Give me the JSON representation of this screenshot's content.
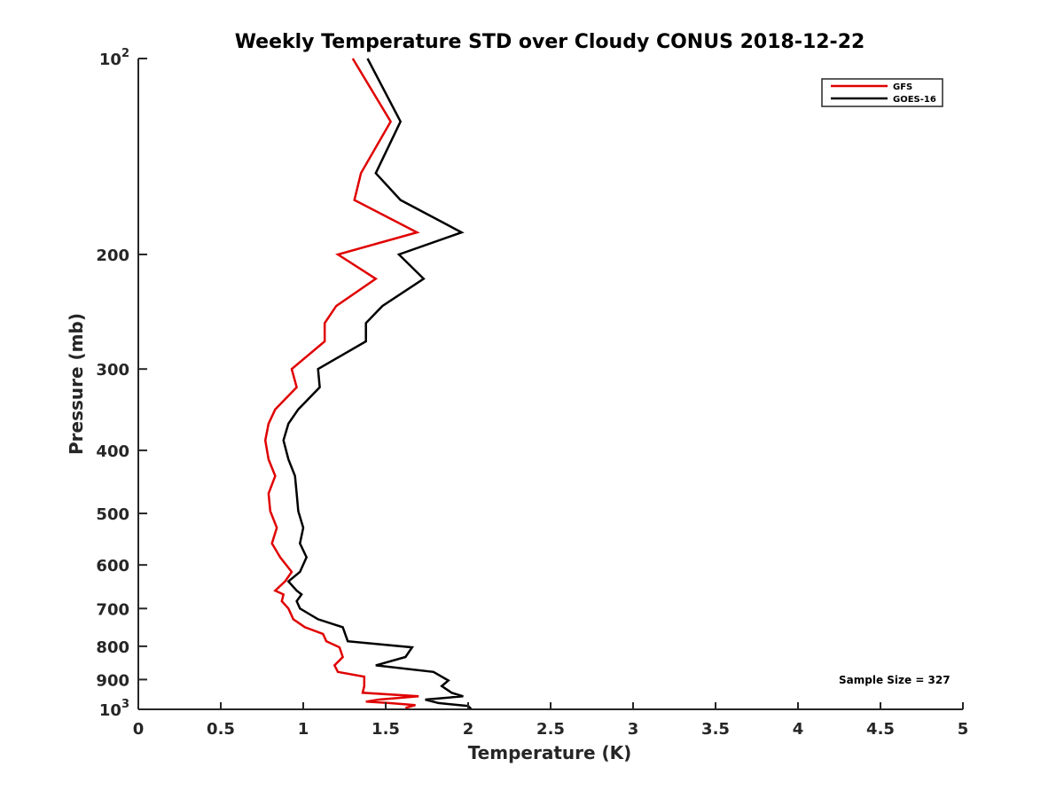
{
  "chart_data": {
    "type": "line",
    "title": "Weekly Temperature STD over Cloudy CONUS 2018-12-22",
    "xlabel": "Temperature (K)",
    "ylabel": "Pressure (mb)",
    "xlim": [
      0,
      5
    ],
    "ylim": [
      100,
      1000
    ],
    "y_scale": "log",
    "y_reversed": true,
    "grid": false,
    "x_ticks": [
      0,
      0.5,
      1,
      1.5,
      2,
      2.5,
      3,
      3.5,
      4,
      4.5,
      5
    ],
    "x_tick_labels": [
      "0",
      "0.5",
      "1",
      "1.5",
      "2",
      "2.5",
      "3",
      "3.5",
      "4",
      "4.5",
      "5"
    ],
    "y_ticks": [
      100,
      200,
      300,
      400,
      500,
      600,
      700,
      800,
      900,
      1000
    ],
    "y_tick_labels": [
      {
        "base": "10",
        "sup": "2"
      },
      {
        "base": "200",
        "sup": ""
      },
      {
        "base": "300",
        "sup": ""
      },
      {
        "base": "400",
        "sup": ""
      },
      {
        "base": "500",
        "sup": ""
      },
      {
        "base": "600",
        "sup": ""
      },
      {
        "base": "700",
        "sup": ""
      },
      {
        "base": "800",
        "sup": ""
      },
      {
        "base": "900",
        "sup": ""
      },
      {
        "base": "10",
        "sup": "3"
      }
    ],
    "legend_position": "top-right",
    "annotation": "Sample Size = 327",
    "series": [
      {
        "name": "GFS",
        "color": "#e00000",
        "points": [
          [
            1.3,
            100
          ],
          [
            1.53,
            125
          ],
          [
            1.35,
            150
          ],
          [
            1.31,
            165
          ],
          [
            1.69,
            185
          ],
          [
            1.21,
            200
          ],
          [
            1.44,
            218
          ],
          [
            1.2,
            240
          ],
          [
            1.13,
            255
          ],
          [
            1.13,
            272
          ],
          [
            0.93,
            300
          ],
          [
            0.96,
            320
          ],
          [
            0.83,
            346
          ],
          [
            0.79,
            364
          ],
          [
            0.77,
            386
          ],
          [
            0.79,
            413
          ],
          [
            0.83,
            438
          ],
          [
            0.79,
            466
          ],
          [
            0.8,
            496
          ],
          [
            0.84,
            526
          ],
          [
            0.81,
            556
          ],
          [
            0.86,
            584
          ],
          [
            0.93,
            615
          ],
          [
            0.89,
            636
          ],
          [
            0.83,
            657
          ],
          [
            0.88,
            666
          ],
          [
            0.87,
            682
          ],
          [
            0.91,
            700
          ],
          [
            0.94,
            727
          ],
          [
            1.01,
            748
          ],
          [
            1.12,
            766
          ],
          [
            1.14,
            786
          ],
          [
            1.22,
            803
          ],
          [
            1.24,
            831
          ],
          [
            1.19,
            856
          ],
          [
            1.21,
            876
          ],
          [
            1.37,
            891
          ],
          [
            1.37,
            921
          ],
          [
            1.36,
            943
          ],
          [
            1.7,
            955
          ],
          [
            1.46,
            966
          ],
          [
            1.38,
            973
          ],
          [
            1.52,
            978
          ],
          [
            1.68,
            985
          ],
          [
            1.62,
            995
          ]
        ]
      },
      {
        "name": "GOES-16",
        "color": "#000000",
        "points": [
          [
            1.39,
            100
          ],
          [
            1.59,
            125
          ],
          [
            1.44,
            150
          ],
          [
            1.59,
            165
          ],
          [
            1.96,
            185
          ],
          [
            1.58,
            200
          ],
          [
            1.73,
            218
          ],
          [
            1.48,
            240
          ],
          [
            1.38,
            255
          ],
          [
            1.38,
            272
          ],
          [
            1.09,
            300
          ],
          [
            1.1,
            320
          ],
          [
            0.97,
            346
          ],
          [
            0.91,
            364
          ],
          [
            0.88,
            386
          ],
          [
            0.91,
            413
          ],
          [
            0.95,
            438
          ],
          [
            0.96,
            466
          ],
          [
            0.97,
            496
          ],
          [
            1.0,
            526
          ],
          [
            0.98,
            556
          ],
          [
            1.02,
            584
          ],
          [
            0.98,
            615
          ],
          [
            0.91,
            636
          ],
          [
            0.96,
            657
          ],
          [
            0.99,
            666
          ],
          [
            0.96,
            682
          ],
          [
            0.98,
            700
          ],
          [
            1.09,
            727
          ],
          [
            1.24,
            748
          ],
          [
            1.27,
            786
          ],
          [
            1.66,
            803
          ],
          [
            1.62,
            831
          ],
          [
            1.44,
            856
          ],
          [
            1.79,
            876
          ],
          [
            1.88,
            903
          ],
          [
            1.84,
            921
          ],
          [
            1.9,
            943
          ],
          [
            1.97,
            955
          ],
          [
            1.74,
            966
          ],
          [
            1.82,
            978
          ],
          [
            2.0,
            988
          ],
          [
            2.02,
            1000
          ]
        ]
      }
    ]
  }
}
